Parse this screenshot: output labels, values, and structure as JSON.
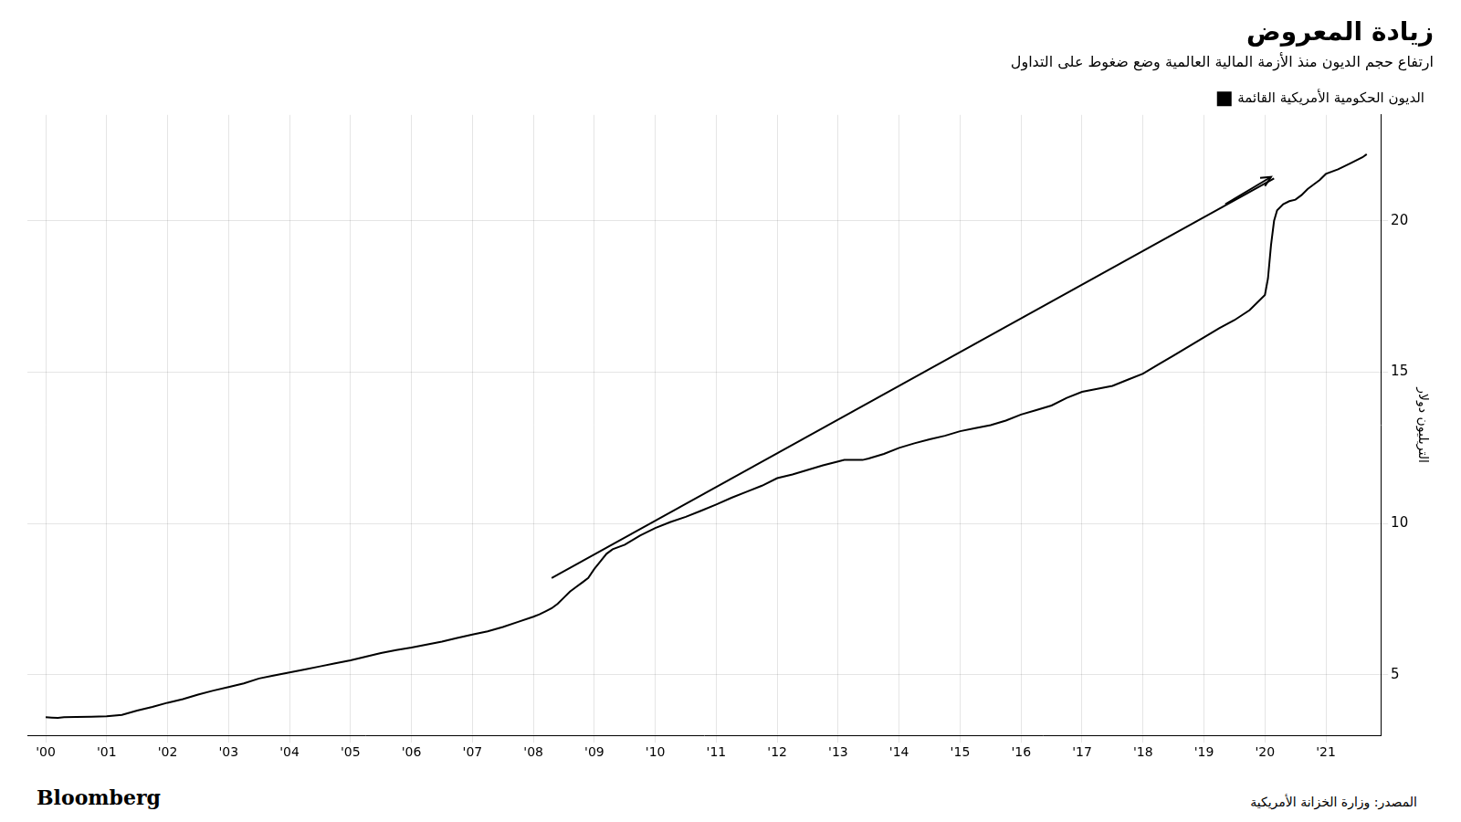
{
  "chart_data": {
    "type": "line",
    "title": "زيادة المعروض",
    "subtitle": "ارتفاع حجم الديون منذ الأزمة المالية العالمية وضع ضغوط على التداول",
    "ylabel": "التريليون دولار",
    "source": "المصدر: وزارة الخزانة الأمريكية",
    "brand": "Bloomberg",
    "legend": "upper right",
    "grid": true,
    "xlim": [
      1999.7,
      2021.9
    ],
    "xticks": [
      {
        "value": 2000,
        "label": "'00"
      },
      {
        "value": 2001,
        "label": "'01"
      },
      {
        "value": 2002,
        "label": "'02"
      },
      {
        "value": 2003,
        "label": "'03"
      },
      {
        "value": 2004,
        "label": "'04"
      },
      {
        "value": 2005,
        "label": "'05"
      },
      {
        "value": 2006,
        "label": "'06"
      },
      {
        "value": 2007,
        "label": "'07"
      },
      {
        "value": 2008,
        "label": "'08"
      },
      {
        "value": 2009,
        "label": "'09"
      },
      {
        "value": 2010,
        "label": "'10"
      },
      {
        "value": 2011,
        "label": "'11"
      },
      {
        "value": 2012,
        "label": "'12"
      },
      {
        "value": 2013,
        "label": "'13"
      },
      {
        "value": 2014,
        "label": "'14"
      },
      {
        "value": 2015,
        "label": "'15"
      },
      {
        "value": 2016,
        "label": "'16"
      },
      {
        "value": 2017,
        "label": "'17"
      },
      {
        "value": 2018,
        "label": "'18"
      },
      {
        "value": 2019,
        "label": "'19"
      },
      {
        "value": 2020,
        "label": "'20"
      },
      {
        "value": 2021,
        "label": "'21"
      }
    ],
    "ylim": [
      3.0,
      23.5
    ],
    "yticks": [
      5,
      10,
      15,
      20
    ],
    "series": [
      {
        "name": "الديون الحكومية الأمريكية القائمة",
        "color": "#000000",
        "x": [
          2000.0,
          2000.1,
          2000.2,
          2000.3,
          2000.5,
          2000.75,
          2001.0,
          2001.25,
          2001.5,
          2001.75,
          2002.0,
          2002.25,
          2002.5,
          2002.75,
          2003.0,
          2003.25,
          2003.5,
          2003.75,
          2004.0,
          2004.25,
          2004.5,
          2004.75,
          2005.0,
          2005.25,
          2005.5,
          2005.75,
          2006.0,
          2006.25,
          2006.5,
          2006.75,
          2007.0,
          2007.25,
          2007.5,
          2007.75,
          2008.0,
          2008.1,
          2008.2,
          2008.3,
          2008.4,
          2008.5,
          2008.6,
          2008.7,
          2008.8,
          2008.9,
          2009.0,
          2009.1,
          2009.2,
          2009.3,
          2009.5,
          2009.75,
          2010.0,
          2010.25,
          2010.5,
          2010.75,
          2011.0,
          2011.25,
          2011.5,
          2011.75,
          2012.0,
          2012.25,
          2012.5,
          2012.75,
          2013.0,
          2013.1,
          2013.2,
          2013.3,
          2013.4,
          2013.5,
          2013.75,
          2014.0,
          2014.25,
          2014.5,
          2014.75,
          2015.0,
          2015.25,
          2015.5,
          2015.75,
          2016.0,
          2016.25,
          2016.5,
          2016.75,
          2017.0,
          2017.25,
          2017.5,
          2017.75,
          2018.0,
          2018.25,
          2018.5,
          2018.75,
          2019.0,
          2019.25,
          2019.5,
          2019.75,
          2020.0,
          2020.05,
          2020.1,
          2020.15,
          2020.2,
          2020.3,
          2020.4,
          2020.5,
          2020.6,
          2020.7,
          2020.8,
          2020.9,
          2021.0,
          2021.2,
          2021.4,
          2021.6,
          2021.67
        ],
        "values": [
          3.6,
          3.59,
          3.58,
          3.6,
          3.61,
          3.62,
          3.63,
          3.68,
          3.82,
          3.94,
          4.08,
          4.2,
          4.35,
          4.48,
          4.6,
          4.72,
          4.88,
          4.98,
          5.08,
          5.18,
          5.28,
          5.38,
          5.48,
          5.6,
          5.72,
          5.82,
          5.9,
          6.0,
          6.1,
          6.22,
          6.33,
          6.44,
          6.58,
          6.75,
          6.92,
          7.0,
          7.1,
          7.2,
          7.35,
          7.55,
          7.75,
          7.9,
          8.05,
          8.2,
          8.5,
          8.75,
          9.0,
          9.15,
          9.3,
          9.6,
          9.85,
          10.05,
          10.22,
          10.42,
          10.63,
          10.85,
          11.05,
          11.25,
          11.5,
          11.62,
          11.77,
          11.92,
          12.05,
          12.1,
          12.1,
          12.1,
          12.1,
          12.15,
          12.3,
          12.5,
          12.65,
          12.78,
          12.9,
          13.05,
          13.15,
          13.25,
          13.4,
          13.6,
          13.75,
          13.9,
          14.15,
          14.35,
          14.45,
          14.55,
          14.75,
          14.95,
          15.25,
          15.55,
          15.85,
          16.15,
          16.45,
          16.72,
          17.05,
          17.55,
          18.1,
          19.2,
          20.0,
          20.35,
          20.55,
          20.65,
          20.7,
          20.85,
          21.05,
          21.2,
          21.35,
          21.55,
          21.7,
          21.9,
          22.1,
          22.2
        ]
      },
      {
        "color": "#000000",
        "x": [
          2008.3,
          2020.15
        ],
        "values": [
          8.2,
          21.4
        ]
      }
    ],
    "annotations": [
      {
        "type": "arrow",
        "x_tail": 2019.35,
        "y_tail": 20.55,
        "x_head": 2020.1,
        "y_head": 21.45,
        "color": "#000000"
      }
    ]
  }
}
